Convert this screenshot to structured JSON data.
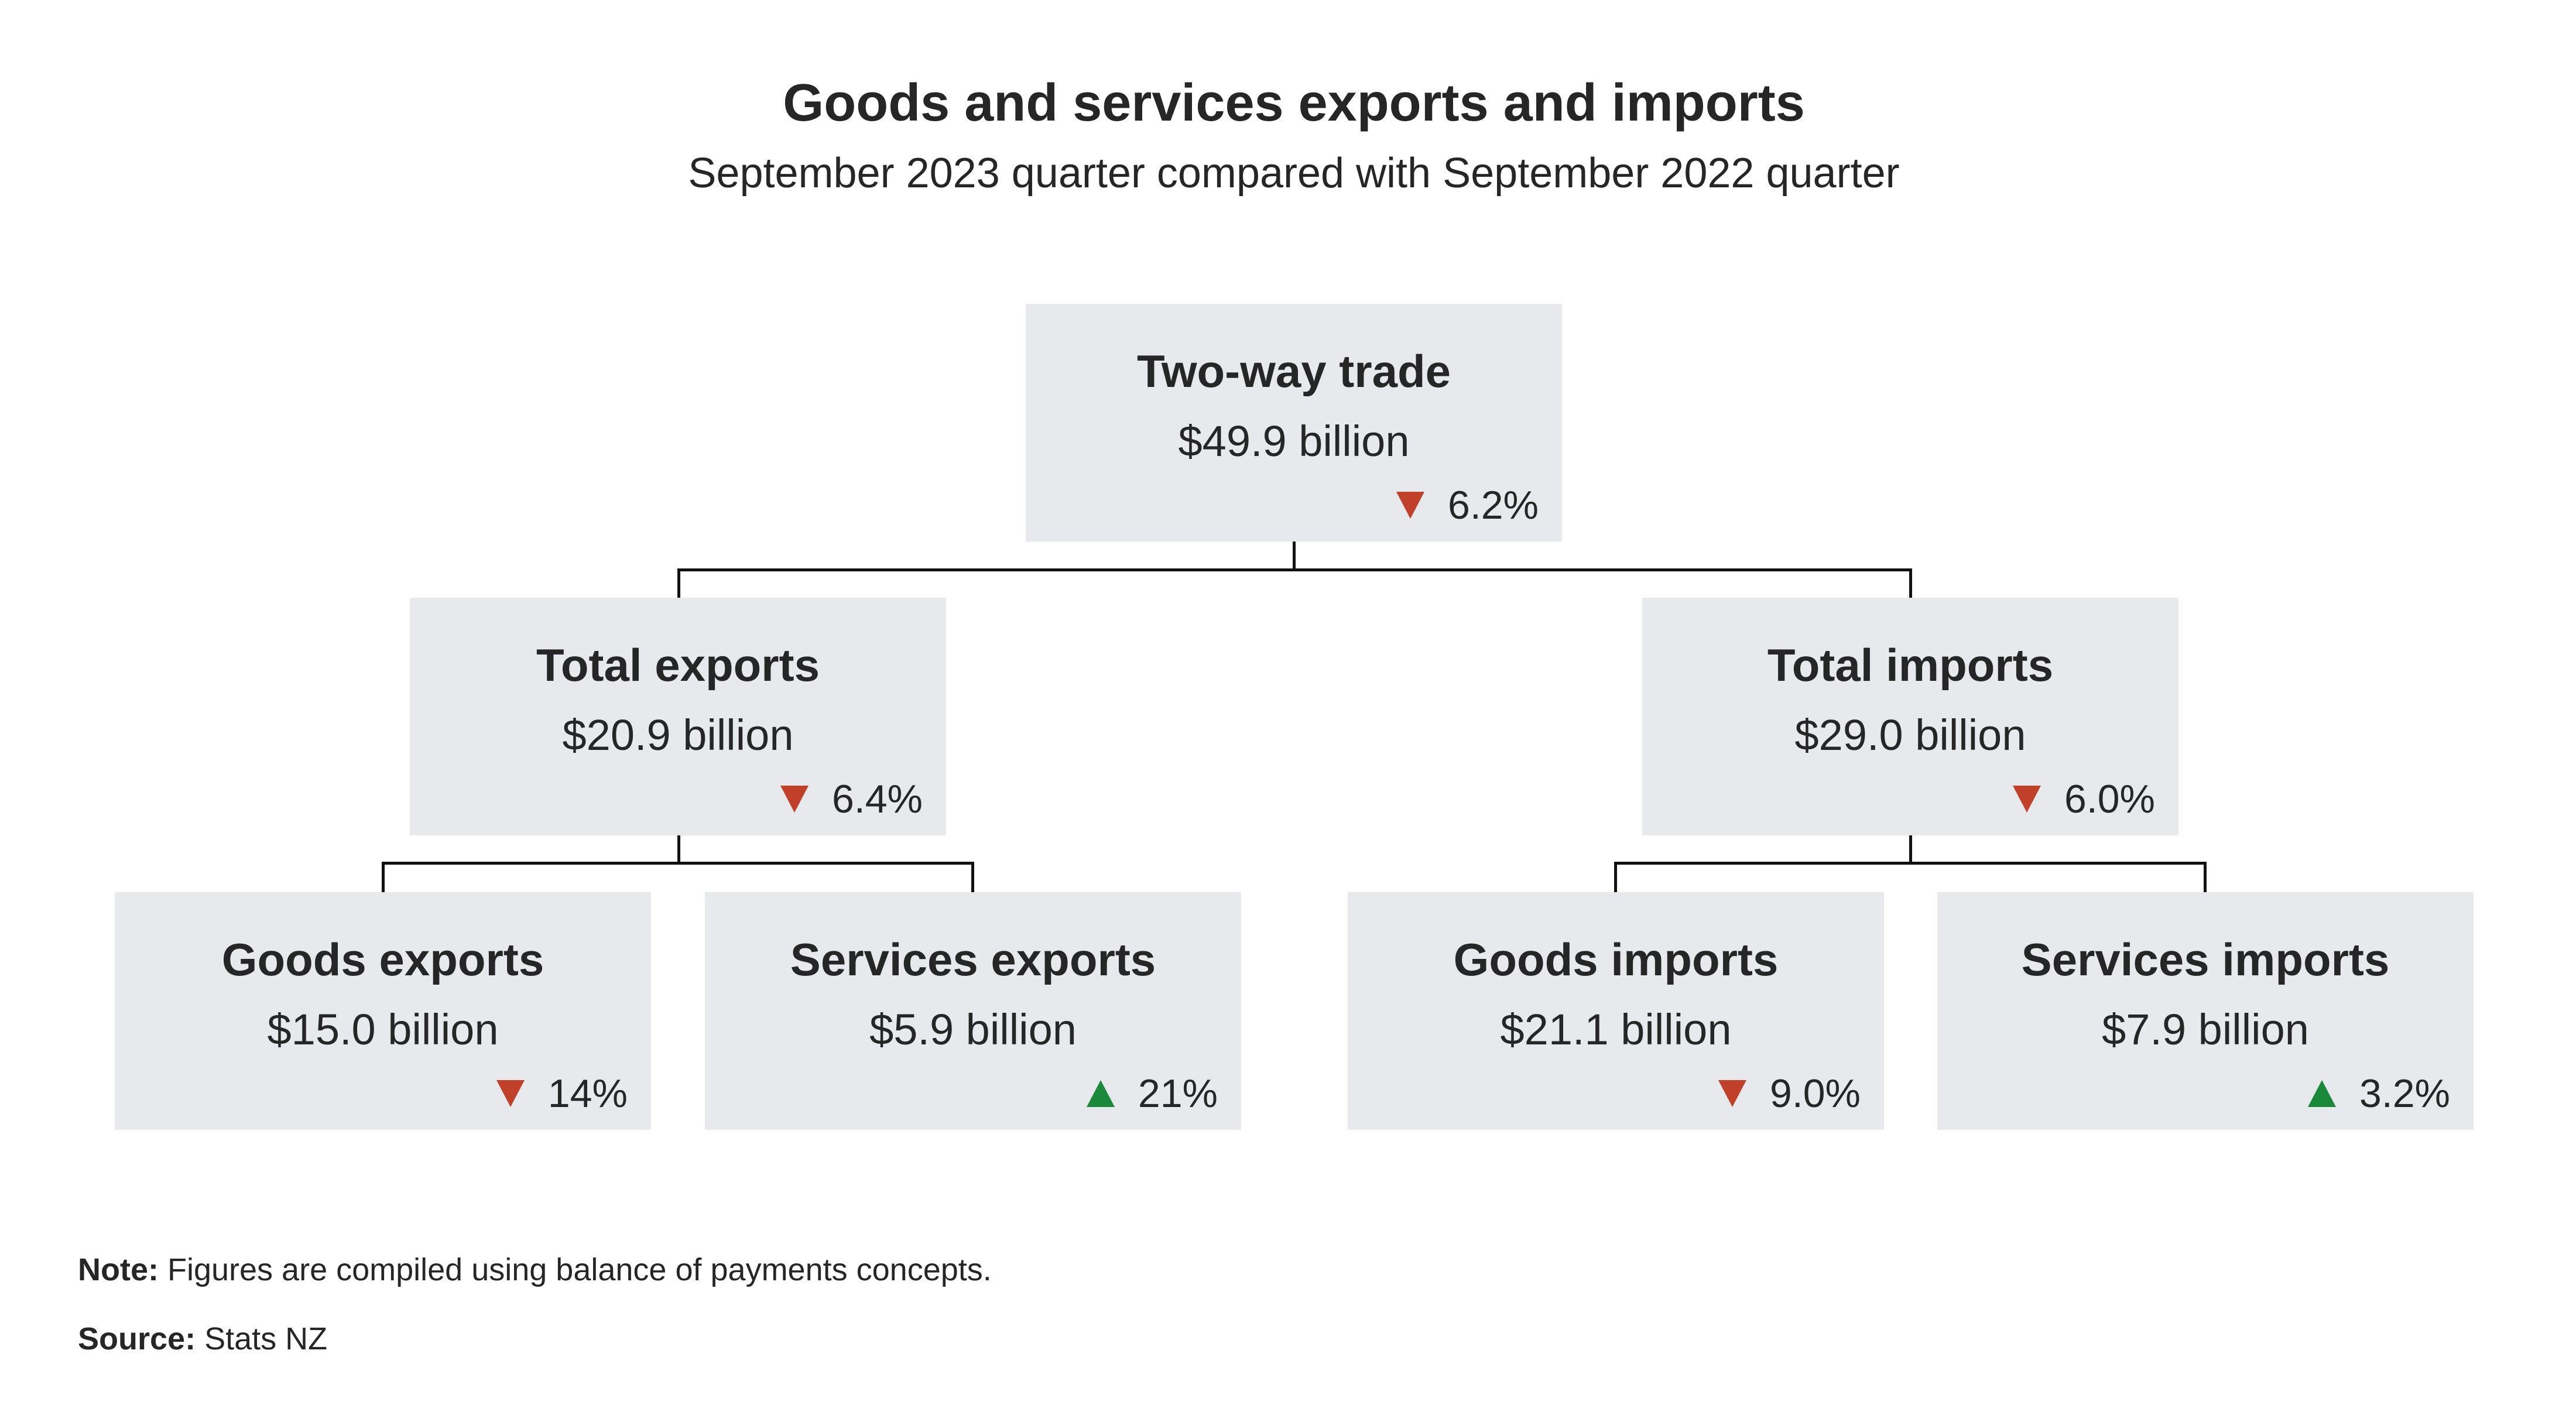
{
  "header": {
    "title": "Goods and services exports and imports",
    "subtitle": "September 2023 quarter compared with September 2022 quarter"
  },
  "colors": {
    "box_fill": "#e8e9ec",
    "decrease": "#c0402a",
    "increase": "#1a8a3a"
  },
  "nodes": {
    "two_way": {
      "label": "Two-way trade",
      "value": "$49.9 billion",
      "change": "6.2%",
      "direction": "down"
    },
    "total_exports": {
      "label": "Total exports",
      "value": "$20.9 billion",
      "change": "6.4%",
      "direction": "down"
    },
    "total_imports": {
      "label": "Total imports",
      "value": "$29.0 billion",
      "change": "6.0%",
      "direction": "down"
    },
    "goods_exports": {
      "label": "Goods exports",
      "value": "$15.0 billion",
      "change": "14%",
      "direction": "down"
    },
    "services_exports": {
      "label": "Services exports",
      "value": "$5.9 billion",
      "change": "21%",
      "direction": "up"
    },
    "goods_imports": {
      "label": "Goods imports",
      "value": "$21.1 billion",
      "change": "9.0%",
      "direction": "down"
    },
    "services_imports": {
      "label": "Services imports",
      "value": "$7.9 billion",
      "change": "3.2%",
      "direction": "up"
    }
  },
  "footer": {
    "note_label": "Note:",
    "note_text": " Figures are compiled using balance of payments concepts.",
    "source_label": "Source:",
    "source_text": " Stats NZ"
  }
}
